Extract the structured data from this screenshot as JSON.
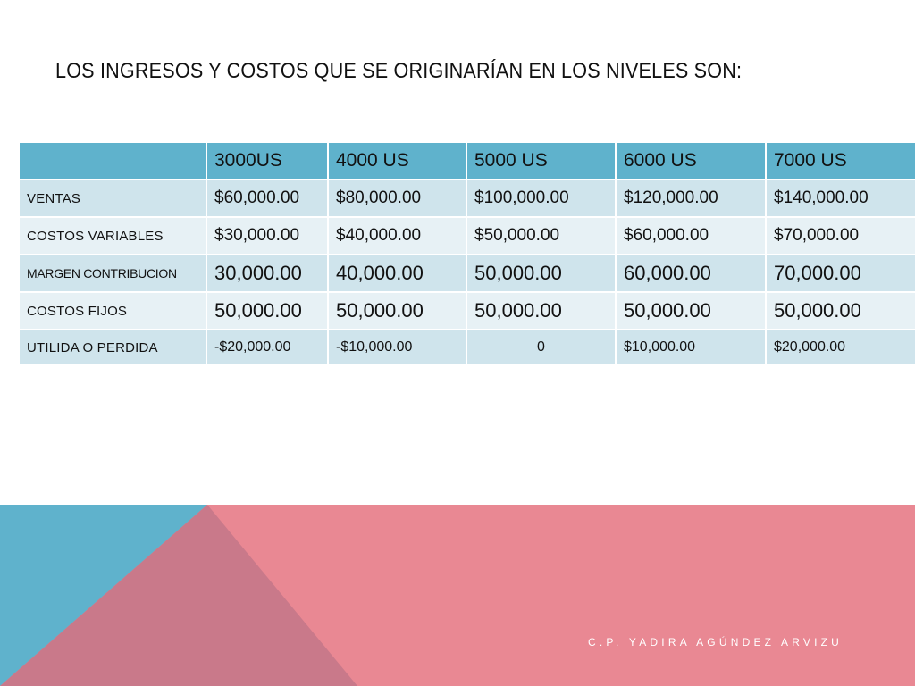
{
  "title": "LOS INGRESOS Y COSTOS QUE SE ORIGINARÍAN EN LOS NIVELES SON:",
  "table": {
    "corner": "",
    "headers": [
      "3000US",
      "4000 US",
      "5000 US",
      "6000 US",
      "7000 US"
    ],
    "rows": [
      {
        "label": "VENTAS",
        "values": [
          "$60,000.00",
          "$80,000.00",
          "$100,000.00",
          "$120,000.00",
          "$140,000.00"
        ]
      },
      {
        "label": "COSTOS VARIABLES",
        "values": [
          "$30,000.00",
          "$40,000.00",
          "$50,000.00",
          "$60,000.00",
          "$70,000.00"
        ]
      },
      {
        "label": "MARGEN CONTRIBUCION",
        "values": [
          "30,000.00",
          "40,000.00",
          "50,000.00",
          "60,000.00",
          "70,000.00"
        ]
      },
      {
        "label": "COSTOS FIJOS",
        "values": [
          "50,000.00",
          "50,000.00",
          "50,000.00",
          "50,000.00",
          "50,000.00"
        ]
      },
      {
        "label": "UTILIDA O PERDIDA",
        "values": [
          "-$20,000.00",
          "-$10,000.00",
          "0",
          "$10,000.00",
          "$20,000.00"
        ]
      }
    ]
  },
  "footer": {
    "author": "C.P. YADIRA AGÚNDEZ ARVIZU"
  },
  "colors": {
    "header_bg": "#5fb2cc",
    "row_dark": "#cfe4ec",
    "row_light": "#e7f1f5",
    "footer_pink": "#e98893",
    "footer_blue": "#5fb2cc",
    "footer_mauve": "#c9798a"
  }
}
